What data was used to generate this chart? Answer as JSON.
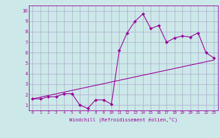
{
  "xlabel": "Windchill (Refroidissement éolien,°C)",
  "background_color": "#cce8e8",
  "line_color": "#990099",
  "grid_color": "#aaaacc",
  "xlim": [
    -0.5,
    23.5
  ],
  "ylim": [
    0.5,
    10.5
  ],
  "xticks": [
    0,
    1,
    2,
    3,
    4,
    5,
    6,
    7,
    8,
    9,
    10,
    11,
    12,
    13,
    14,
    15,
    16,
    17,
    18,
    19,
    20,
    21,
    22,
    23
  ],
  "yticks": [
    1,
    2,
    3,
    4,
    5,
    6,
    7,
    8,
    9,
    10
  ],
  "line1_x": [
    0,
    1,
    2,
    3,
    4,
    5,
    6,
    7,
    8,
    9,
    10,
    11,
    12,
    13,
    14,
    15,
    16,
    17,
    18,
    19,
    20,
    21,
    22,
    23
  ],
  "line1_y": [
    1.6,
    1.6,
    1.8,
    1.8,
    2.1,
    2.1,
    1.0,
    0.7,
    1.5,
    1.5,
    1.1,
    6.2,
    7.9,
    9.0,
    9.7,
    8.3,
    8.6,
    7.0,
    7.4,
    7.6,
    7.5,
    7.9,
    6.0,
    5.5
  ],
  "line2_x": [
    0,
    23
  ],
  "line2_y": [
    1.6,
    5.3
  ],
  "figsize": [
    3.2,
    2.0
  ],
  "dpi": 100
}
